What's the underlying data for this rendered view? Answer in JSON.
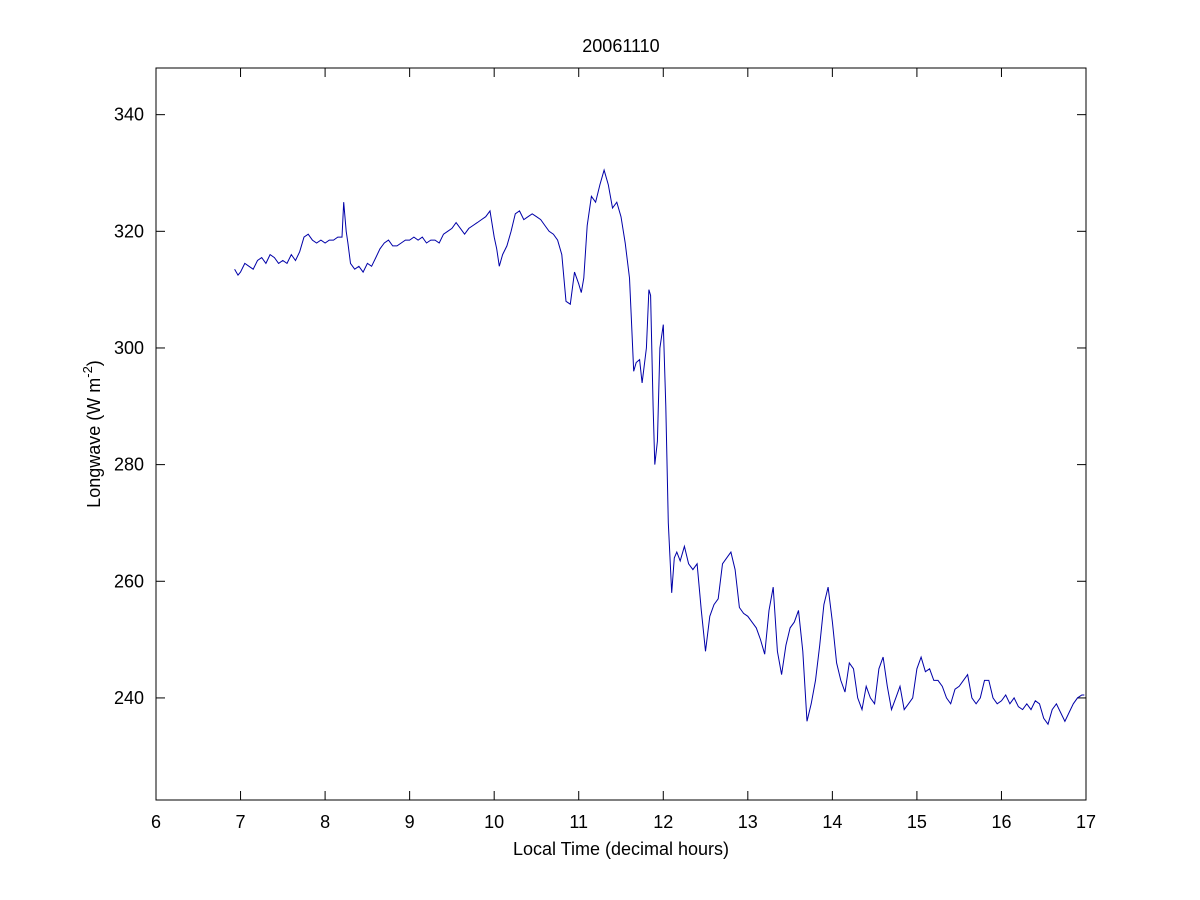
{
  "chart_data": {
    "type": "line",
    "title": "20061110",
    "xlabel": "Local Time (decimal hours)",
    "ylabel": {
      "main": "Longwave (W m",
      "sup": "-2",
      "close": ")"
    },
    "xlim": [
      6,
      17
    ],
    "ylim": [
      222.5,
      348
    ],
    "xticks": [
      6,
      7,
      8,
      9,
      10,
      11,
      12,
      13,
      14,
      15,
      16,
      17
    ],
    "yticks": [
      240,
      260,
      280,
      300,
      320,
      340
    ],
    "grid": false,
    "colors": {
      "line": "#0000a8",
      "axes": "#000000",
      "background": "#ffffff"
    },
    "series": [
      {
        "x": [
          6.93,
          6.97,
          7.0,
          7.05,
          7.1,
          7.15,
          7.2,
          7.25,
          7.3,
          7.35,
          7.4,
          7.45,
          7.5,
          7.55,
          7.6,
          7.65,
          7.7,
          7.75,
          7.8,
          7.85,
          7.9,
          7.95,
          8.0,
          8.05,
          8.1,
          8.15,
          8.2,
          8.22,
          8.25,
          8.27,
          8.3,
          8.35,
          8.4,
          8.45,
          8.5,
          8.55,
          8.6,
          8.65,
          8.7,
          8.75,
          8.8,
          8.85,
          8.9,
          8.95,
          9.0,
          9.05,
          9.1,
          9.15,
          9.2,
          9.25,
          9.3,
          9.35,
          9.4,
          9.45,
          9.5,
          9.55,
          9.6,
          9.65,
          9.7,
          9.75,
          9.8,
          9.85,
          9.9,
          9.95,
          10.0,
          10.03,
          10.06,
          10.1,
          10.15,
          10.2,
          10.25,
          10.3,
          10.35,
          10.4,
          10.45,
          10.5,
          10.55,
          10.6,
          10.65,
          10.7,
          10.75,
          10.8,
          10.85,
          10.9,
          10.95,
          11.0,
          11.03,
          11.06,
          11.1,
          11.15,
          11.2,
          11.25,
          11.3,
          11.35,
          11.4,
          11.45,
          11.5,
          11.55,
          11.6,
          11.62,
          11.65,
          11.68,
          11.72,
          11.75,
          11.8,
          11.83,
          11.85,
          11.88,
          11.9,
          11.93,
          11.96,
          12.0,
          12.03,
          12.06,
          12.1,
          12.13,
          12.16,
          12.2,
          12.25,
          12.3,
          12.35,
          12.4,
          12.45,
          12.5,
          12.55,
          12.6,
          12.65,
          12.7,
          12.75,
          12.8,
          12.85,
          12.9,
          12.95,
          13.0,
          13.05,
          13.1,
          13.15,
          13.2,
          13.25,
          13.3,
          13.35,
          13.4,
          13.45,
          13.5,
          13.55,
          13.6,
          13.65,
          13.7,
          13.75,
          13.8,
          13.85,
          13.9,
          13.95,
          14.0,
          14.05,
          14.1,
          14.15,
          14.2,
          14.25,
          14.3,
          14.35,
          14.4,
          14.45,
          14.5,
          14.55,
          14.6,
          14.65,
          14.7,
          14.75,
          14.8,
          14.85,
          14.9,
          14.95,
          15.0,
          15.05,
          15.1,
          15.15,
          15.2,
          15.25,
          15.3,
          15.35,
          15.4,
          15.45,
          15.5,
          15.55,
          15.6,
          15.65,
          15.7,
          15.75,
          15.8,
          15.85,
          15.9,
          15.95,
          16.0,
          16.05,
          16.1,
          16.15,
          16.2,
          16.25,
          16.3,
          16.35,
          16.4,
          16.45,
          16.5,
          16.55,
          16.6,
          16.65,
          16.7,
          16.75,
          16.8,
          16.85,
          16.9,
          16.95,
          16.98
        ],
        "y": [
          313.5,
          312.5,
          313,
          314.5,
          314,
          313.5,
          315,
          315.5,
          314.5,
          316,
          315.5,
          314.5,
          315,
          314.5,
          316,
          315,
          316.5,
          319,
          319.5,
          318.5,
          318,
          318.5,
          318,
          318.5,
          318.5,
          319,
          319,
          325,
          320,
          318,
          314.5,
          313.5,
          314,
          313,
          314.5,
          314,
          315.5,
          317,
          318,
          318.5,
          317.5,
          317.5,
          318,
          318.5,
          318.5,
          319,
          318.5,
          319,
          318,
          318.5,
          318.5,
          318,
          319.5,
          320,
          320.5,
          321.5,
          320.5,
          319.5,
          320.5,
          321,
          321.5,
          322,
          322.5,
          323.5,
          319,
          317,
          314,
          316,
          317.5,
          320,
          323,
          323.5,
          322,
          322.5,
          323,
          322.5,
          322,
          321,
          320,
          319.5,
          318.5,
          316,
          308,
          307.5,
          313,
          311,
          309.5,
          312,
          321,
          326,
          325,
          328,
          330.5,
          328,
          324,
          325,
          322.5,
          318,
          312,
          306,
          296,
          297.5,
          298,
          294,
          300,
          310,
          309,
          290,
          280,
          284,
          300,
          304,
          290,
          270,
          258,
          264,
          265,
          263.5,
          266,
          263,
          262,
          263,
          255,
          248,
          254,
          256,
          257,
          263,
          264,
          265,
          262,
          255.5,
          254.5,
          254,
          253,
          252,
          250,
          247.5,
          255,
          259,
          248,
          244,
          249,
          252,
          253,
          255,
          248,
          236,
          239,
          243,
          249,
          256,
          259,
          253,
          246,
          243,
          241,
          246,
          245,
          240,
          238,
          242,
          240,
          239,
          245,
          247,
          242,
          238,
          240,
          242,
          238,
          239,
          240,
          245,
          247,
          244.5,
          245,
          243,
          243,
          242,
          240,
          239,
          241.5,
          242,
          243,
          244,
          240,
          239,
          240,
          243,
          243,
          240,
          239,
          239.5,
          240.5,
          239,
          240,
          238.5,
          238,
          239,
          238,
          239.5,
          239,
          236.5,
          235.5,
          238,
          239,
          237.5,
          236,
          237.5,
          239,
          240,
          240.5,
          240.5
        ]
      }
    ]
  }
}
